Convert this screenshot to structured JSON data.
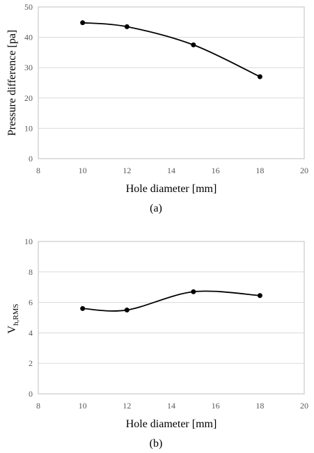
{
  "chart_data": [
    {
      "type": "line",
      "caption": "(a)",
      "xlabel": "Hole diameter [mm]",
      "ylabel": "Pressure difference [pa]",
      "xlim": [
        8,
        20
      ],
      "ylim": [
        0,
        50
      ],
      "xticks": [
        "8",
        "10",
        "12",
        "14",
        "16",
        "18",
        "20"
      ],
      "yticks": [
        "0",
        "10",
        "20",
        "30",
        "40",
        "50"
      ],
      "grid": "horizontal",
      "legend": "none",
      "series": [
        {
          "x": [
            10,
            12,
            15,
            18
          ],
          "y": [
            44.8,
            43.5,
            37.5,
            27.0
          ],
          "smooth": true
        }
      ]
    },
    {
      "type": "line",
      "caption": "(b)",
      "xlabel": "Hole diameter [mm]",
      "ylabel_main": "V",
      "ylabel_sub": "h,RMS",
      "xlim": [
        8,
        20
      ],
      "ylim": [
        0,
        10
      ],
      "xticks": [
        "8",
        "10",
        "12",
        "14",
        "16",
        "18",
        "20"
      ],
      "yticks": [
        "0",
        "2",
        "4",
        "6",
        "8",
        "10"
      ],
      "grid": "horizontal",
      "legend": "none",
      "series": [
        {
          "x": [
            10,
            12,
            15,
            18
          ],
          "y": [
            5.6,
            5.5,
            6.7,
            6.45
          ],
          "smooth": true
        }
      ]
    }
  ],
  "colors": {
    "line": "#000000",
    "grid": "#d9d9d9",
    "frame": "#bfbfbf",
    "tick_text": "#595959"
  }
}
